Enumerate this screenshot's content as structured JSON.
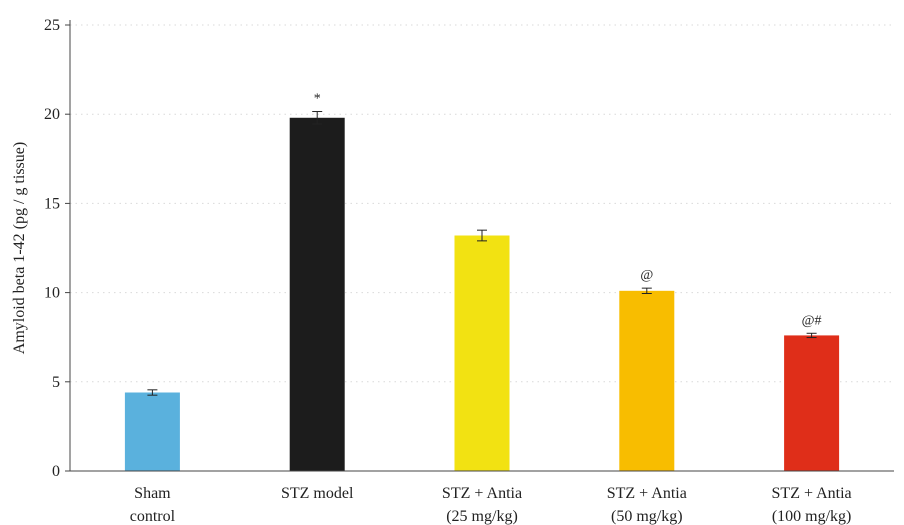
{
  "chart_data": {
    "type": "bar",
    "title": "",
    "xlabel": "",
    "ylabel": "Amyloid beta 1-42 (pg / g tissue)",
    "ylim": [
      0,
      25
    ],
    "yticks": [
      0,
      5,
      10,
      15,
      20,
      25
    ],
    "grid": "horizontal dotted",
    "legend": "none",
    "categories": [
      [
        "Sham",
        "control"
      ],
      [
        "STZ model"
      ],
      [
        "STZ + Antia",
        "(25 mg/kg)"
      ],
      [
        "STZ + Antia",
        "(50 mg/kg)"
      ],
      [
        "STZ + Antia",
        "(100 mg/kg)"
      ]
    ],
    "values": [
      4.4,
      19.8,
      13.2,
      10.1,
      7.6
    ],
    "errors": [
      0.15,
      0.35,
      0.3,
      0.15,
      0.12
    ],
    "annotations": [
      "",
      "*",
      "",
      "@",
      "@#"
    ],
    "colors": [
      "#5ab1dd",
      "#1c1c1c",
      "#f2e212",
      "#f8bd00",
      "#df2e19"
    ]
  }
}
